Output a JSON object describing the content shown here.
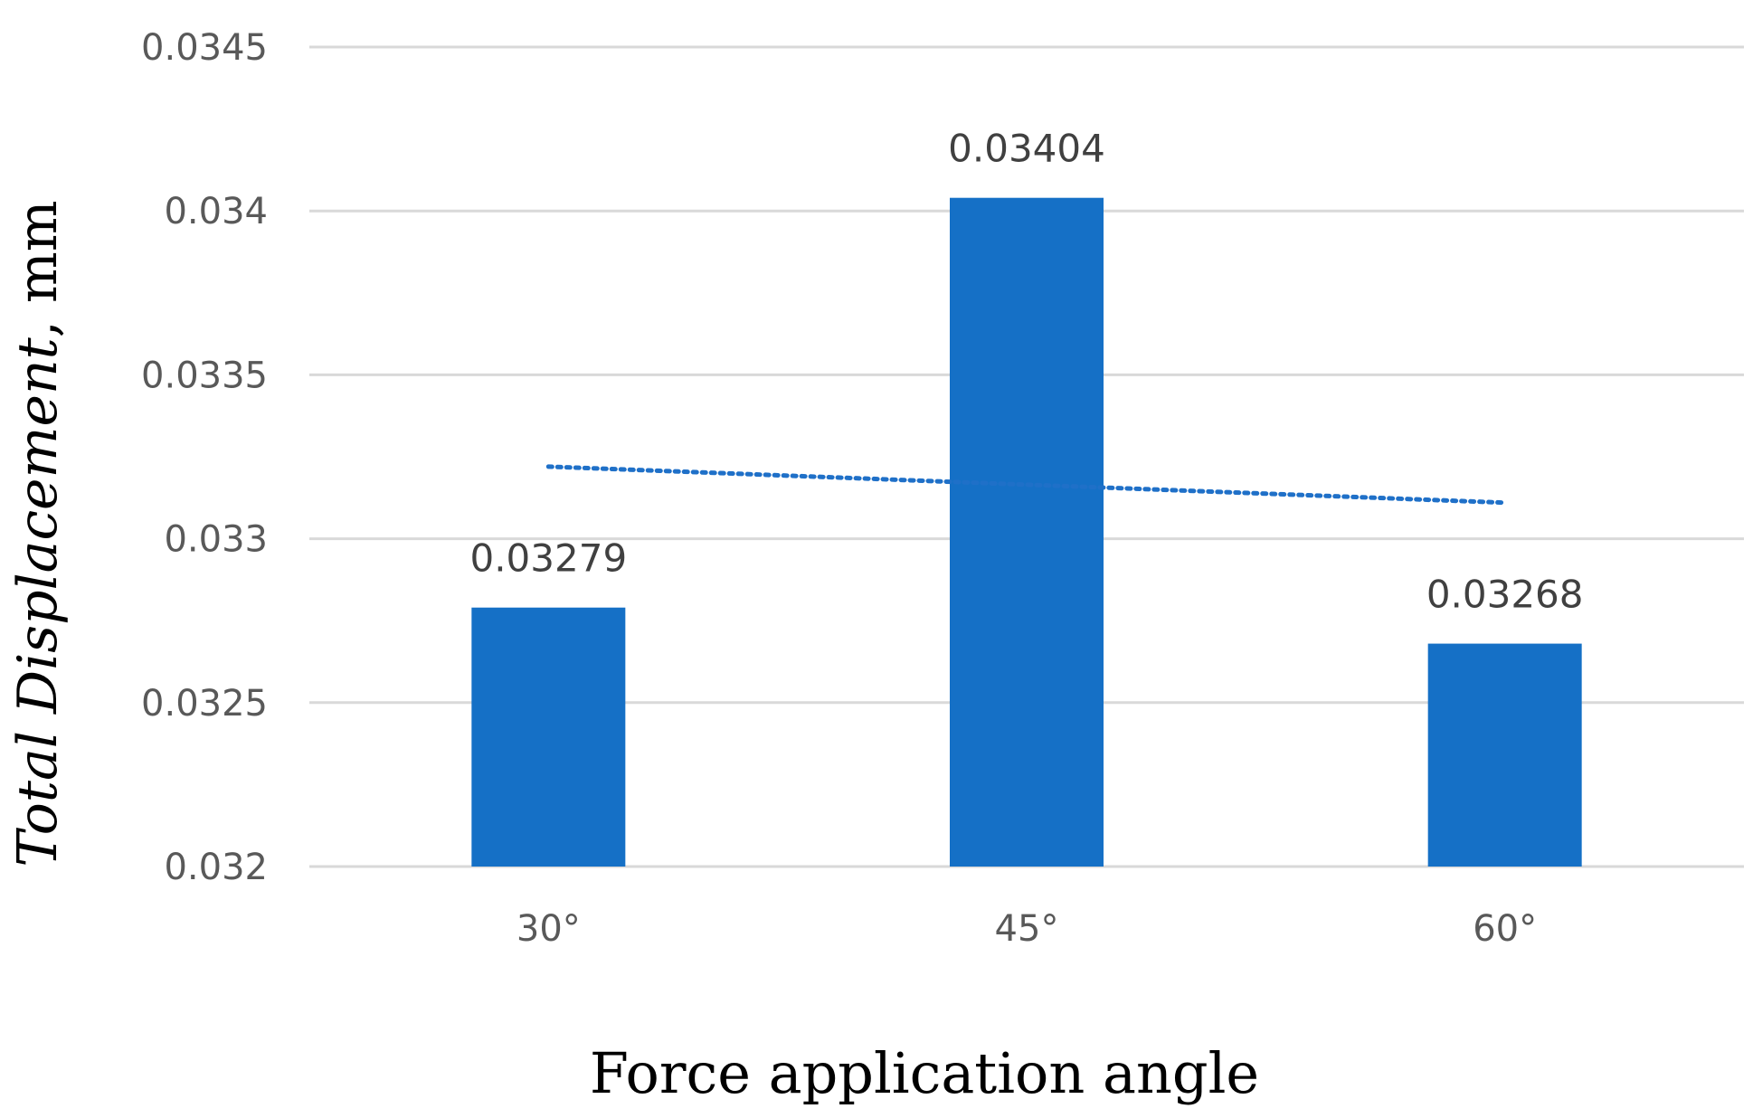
{
  "chart_data": {
    "type": "bar",
    "categories": [
      "30°",
      "45°",
      "60°"
    ],
    "values": [
      0.03279,
      0.03404,
      0.03268
    ],
    "data_labels": [
      "0.03279",
      "0.03404",
      "0.03268"
    ],
    "ylim": [
      0.032,
      0.0345
    ],
    "yticks": [
      0.032,
      0.0325,
      0.033,
      0.0335,
      0.034,
      0.0345
    ],
    "ytick_labels": [
      "0.032",
      "0.0325",
      "0.033",
      "0.0335",
      "0.034",
      "0.0345"
    ],
    "ylabel_italic": "Total Displacement",
    "ylabel_rest": ", mm",
    "xlabel": "Force application angle",
    "grid": true,
    "legend": "none",
    "bar_color": "#1570c6",
    "trendline": {
      "type": "linear",
      "style": "dotted",
      "color": "#1f70c8",
      "start_value": 0.03322,
      "end_value": 0.03311
    }
  }
}
